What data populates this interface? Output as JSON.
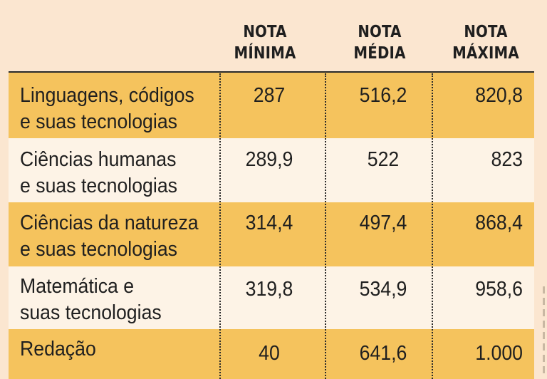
{
  "columns": [
    {
      "line1": "NOTA",
      "line2": "MÍNIMA"
    },
    {
      "line1": "NOTA",
      "line2": "MÉDIA"
    },
    {
      "line1": "NOTA",
      "line2": "MÁXIMA"
    }
  ],
  "rows": [
    {
      "label": "Linguagens, códigos\ne suas tecnologias",
      "min": "287",
      "avg": "516,2",
      "max": "820,8"
    },
    {
      "label": "Ciências humanas\ne suas tecnologias",
      "min": "289,9",
      "avg": "522",
      "max": "823"
    },
    {
      "label": "Ciências da natureza\ne suas tecnologias",
      "min": "314,4",
      "avg": "497,4",
      "max": "868,4"
    },
    {
      "label": "Matemática e\nsuas tecnologias",
      "min": "319,8",
      "avg": "534,9",
      "max": "958,6"
    },
    {
      "label": "Redação",
      "min": "40",
      "avg": "641,6",
      "max": "1.000"
    }
  ],
  "colors": {
    "highlight_row": "#f5c35d",
    "plain_row": "#fdf3e6",
    "background": "#fbe6d0"
  }
}
